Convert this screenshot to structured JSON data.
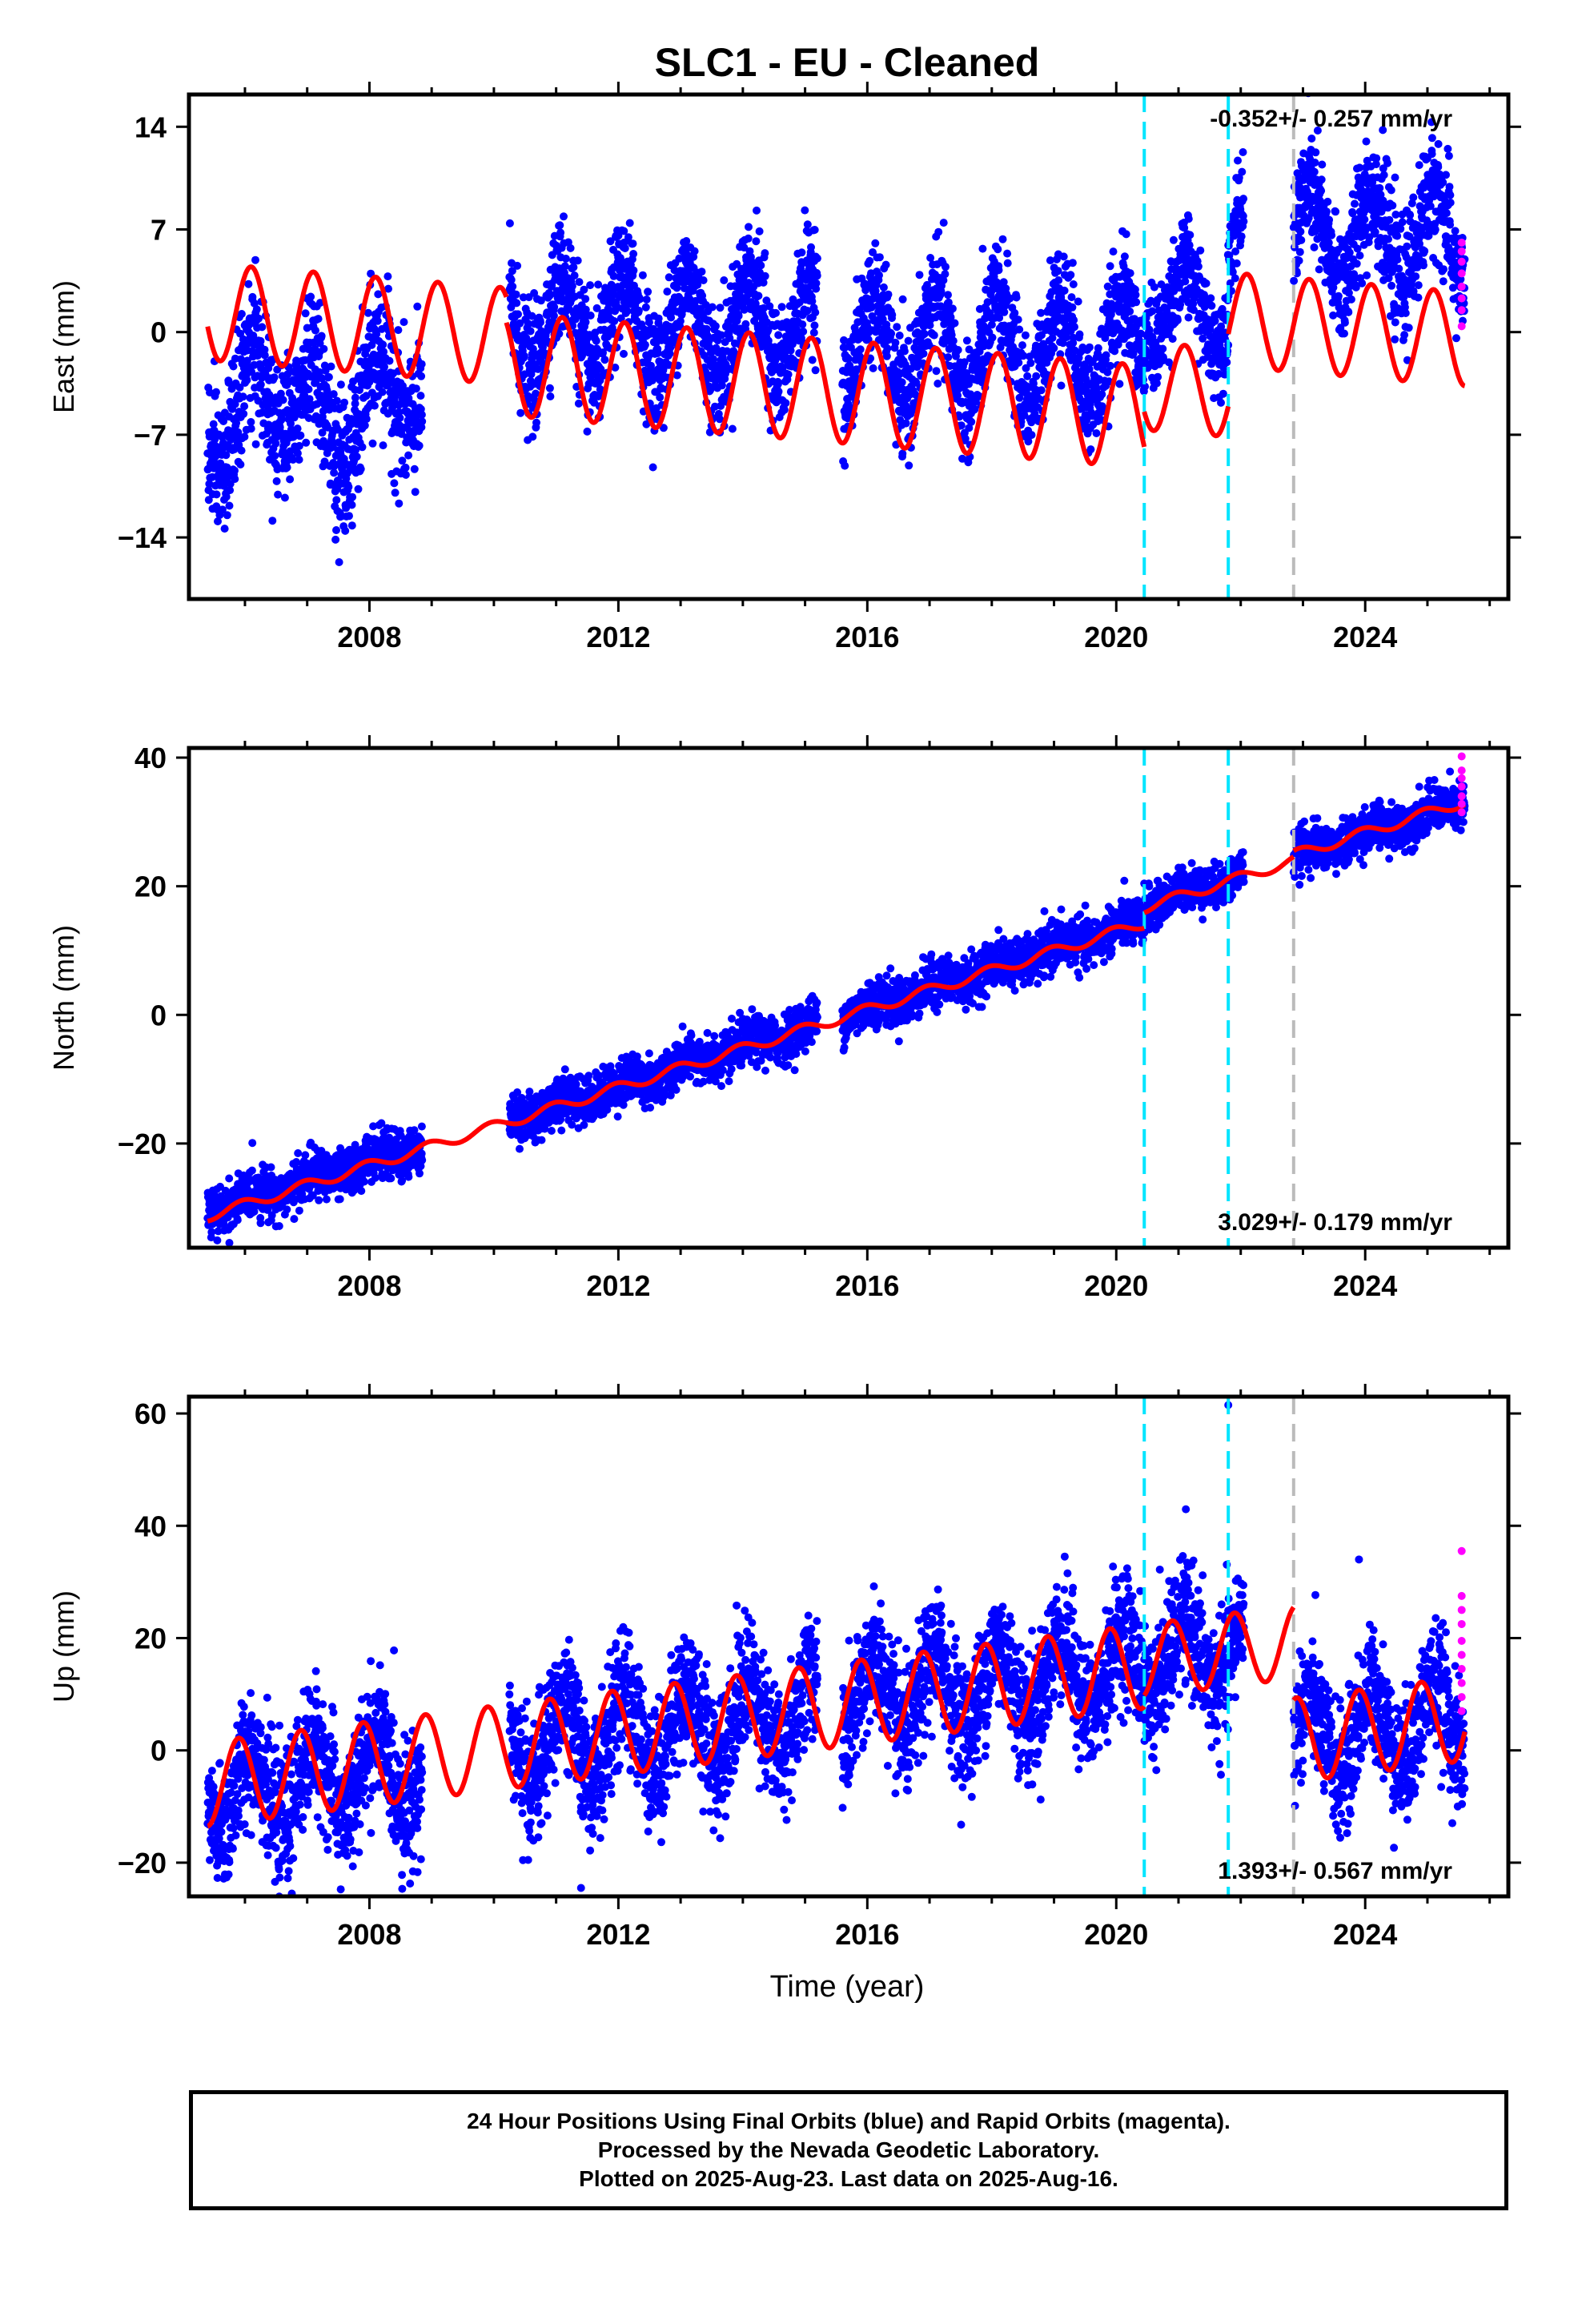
{
  "title": "SLC1  - EU - Cleaned",
  "colors": {
    "final_orbits": "#0000ff",
    "rapid_orbits": "#ff00ff",
    "model_fit": "#ff0000",
    "event_cyan": "#00e5ff",
    "event_gray": "#bbbbbb",
    "frame": "#000000"
  },
  "footer": {
    "line1": "24 Hour Positions Using Final Orbits (blue) and Rapid Orbits (magenta).",
    "line2": "Processed by the Nevada Geodetic Laboratory.",
    "line3": "Plotted on 2025-Aug-23. Last data on 2025-Aug-16."
  },
  "chart_data": [
    {
      "type": "scatter",
      "component": "east",
      "ylabel": "East (mm)",
      "xlabel": "",
      "xlim": [
        2005.1,
        2026.3
      ],
      "ylim": [
        -18.2,
        16.2
      ],
      "x_ticks": [
        2008,
        2012,
        2016,
        2020,
        2024
      ],
      "x_tick_labels": [
        "2008",
        "2012",
        "2016",
        "2020",
        "2024"
      ],
      "y_ticks": [
        14,
        7,
        0,
        -7,
        -14
      ],
      "y_tick_labels": [
        "14",
        "7",
        "0",
        "-7",
        "-14"
      ],
      "rate_label": "-0.352+/- 0.257 mm/yr",
      "rate_position": "top-right",
      "events_cyan": [
        2020.45,
        2021.8
      ],
      "events_gray": [
        2022.85
      ],
      "gaps": [
        [
          2008.85,
          2010.25
        ],
        [
          2015.2,
          2015.6
        ],
        [
          2022.05,
          2022.85
        ]
      ],
      "model": {
        "segments": [
          {
            "t0": 2005.4,
            "t1": 2010.2,
            "offset": 1.4,
            "rate": -0.35,
            "amp": 3.3,
            "phase": 0.15
          },
          {
            "t0": 2010.2,
            "t1": 2020.45,
            "offset": -0.5,
            "rate": -0.35,
            "amp": 3.5,
            "phase": 0.15
          },
          {
            "t0": 2020.45,
            "t1": 2021.8,
            "offset": 1.6,
            "rate": -0.35,
            "amp": 3.0,
            "phase": 0.15
          },
          {
            "t0": 2021.8,
            "t1": 2025.6,
            "offset": 6.6,
            "rate": -0.35,
            "amp": 3.2,
            "phase": 0.15
          }
        ]
      },
      "scatter_levels": [
        {
          "t0": 2005.4,
          "t1": 2008.85,
          "center": -5.0,
          "amp": 3.0,
          "noise": 2.4
        },
        {
          "t0": 2010.25,
          "t1": 2015.2,
          "center": 0.5,
          "amp": 3.2,
          "noise": 2.0
        },
        {
          "t0": 2015.6,
          "t1": 2020.45,
          "center": -1.2,
          "amp": 3.4,
          "noise": 1.9
        },
        {
          "t0": 2020.45,
          "t1": 2021.8,
          "center": 1.8,
          "amp": 2.6,
          "noise": 1.6
        },
        {
          "t0": 2021.8,
          "t1": 2022.05,
          "center": 6.0,
          "amp": 2.5,
          "noise": 1.6
        },
        {
          "t0": 2022.85,
          "t1": 2025.6,
          "center": 6.5,
          "amp": 3.2,
          "noise": 2.0
        }
      ],
      "rapid": {
        "t": 2025.55,
        "values": [
          0.4,
          1.5,
          2.3,
          3.1,
          4.0,
          4.8,
          5.5,
          6.1
        ]
      }
    },
    {
      "type": "scatter",
      "component": "north",
      "ylabel": "North (mm)",
      "xlabel": "",
      "xlim": [
        2005.1,
        2026.3
      ],
      "ylim": [
        -36.2,
        41.5
      ],
      "x_ticks": [
        2008,
        2012,
        2016,
        2020,
        2024
      ],
      "x_tick_labels": [
        "2008",
        "2012",
        "2016",
        "2020",
        "2024"
      ],
      "y_ticks": [
        40,
        20,
        0,
        -20
      ],
      "y_tick_labels": [
        "40",
        "20",
        "0",
        "-20"
      ],
      "rate_label": "3.029+/- 0.179 mm/yr",
      "rate_position": "bottom-right",
      "events_cyan": [
        2020.45,
        2021.8
      ],
      "events_gray": [
        2022.85
      ],
      "gaps": [
        [
          2008.85,
          2010.25
        ],
        [
          2015.2,
          2015.6
        ],
        [
          2022.05,
          2022.85
        ]
      ],
      "model": {
        "segments": [
          {
            "t0": 2005.4,
            "t1": 2020.45,
            "offset": -31.3,
            "rate": 3.029,
            "amp": 0.8,
            "phase": 0.3
          },
          {
            "t0": 2020.45,
            "t1": 2022.85,
            "offset": -28.9,
            "rate": 3.029,
            "amp": 0.8,
            "phase": 0.3
          },
          {
            "t0": 2022.85,
            "t1": 2025.6,
            "offset": -28.0,
            "rate": 3.029,
            "amp": 0.8,
            "phase": 0.3
          }
        ]
      },
      "scatter_levels": [
        {
          "t0": 2005.4,
          "t1": 2008.85,
          "center": -30.6,
          "rate": 3.029,
          "amp": 0.8,
          "noise": 1.8
        },
        {
          "t0": 2010.25,
          "t1": 2015.2,
          "center": -31.1,
          "rate": 3.029,
          "amp": 0.8,
          "noise": 1.8
        },
        {
          "t0": 2015.6,
          "t1": 2020.45,
          "center": -31.0,
          "rate": 3.029,
          "amp": 0.8,
          "noise": 1.8
        },
        {
          "t0": 2020.45,
          "t1": 2022.05,
          "center": -28.5,
          "rate": 3.029,
          "amp": 0.8,
          "noise": 1.6
        },
        {
          "t0": 2022.85,
          "t1": 2025.6,
          "center": -28.2,
          "rate": 3.029,
          "amp": 0.8,
          "noise": 1.7
        }
      ],
      "rapid": {
        "t": 2025.55,
        "values": [
          31.5,
          32.8,
          34.0,
          35.5,
          36.8,
          38.0,
          40.2
        ]
      }
    },
    {
      "type": "scatter",
      "component": "up",
      "ylabel": "Up (mm)",
      "xlabel": "Time (year)",
      "xlim": [
        2005.1,
        2026.3
      ],
      "ylim": [
        -26.0,
        63.0
      ],
      "x_ticks": [
        2008,
        2012,
        2016,
        2020,
        2024
      ],
      "x_tick_labels": [
        "2008",
        "2012",
        "2016",
        "2020",
        "2024"
      ],
      "y_ticks": [
        60,
        40,
        20,
        0,
        -20
      ],
      "y_tick_labels": [
        "60",
        "40",
        "20",
        "0",
        "-20"
      ],
      "rate_label": "1.393+/- 0.567 mm/yr",
      "rate_position": "bottom-right",
      "events_cyan": [
        2020.45,
        2021.8
      ],
      "events_gray": [
        2022.85
      ],
      "gaps": [
        [
          2008.85,
          2010.25
        ],
        [
          2015.2,
          2015.6
        ],
        [
          2022.05,
          2022.85
        ]
      ],
      "outliers": [
        [
          2021.8,
          61.5
        ],
        [
          2013.9,
          25.8
        ],
        [
          2011.4,
          -24.5
        ],
        [
          2020.7,
          32.2
        ],
        [
          2023.9,
          34.0
        ]
      ],
      "model": {
        "segments": [
          {
            "t0": 2005.4,
            "t1": 2020.45,
            "offset": -6.0,
            "rate": 1.393,
            "amp": 7.5,
            "phase": 0.35
          },
          {
            "t0": 2020.45,
            "t1": 2022.85,
            "offset": -5.0,
            "rate": 1.393,
            "amp": 6.5,
            "phase": 0.35
          },
          {
            "t0": 2022.85,
            "t1": 2025.6,
            "offset": -22.5,
            "rate": 1.393,
            "amp": 7.5,
            "phase": 0.35
          }
        ]
      },
      "scatter_levels": [
        {
          "t0": 2005.4,
          "t1": 2008.85,
          "center": -8.0,
          "rate": 1.393,
          "amp": 7.0,
          "noise": 5.5
        },
        {
          "t0": 2010.25,
          "t1": 2015.2,
          "center": -6.5,
          "rate": 1.393,
          "amp": 7.0,
          "noise": 5.5
        },
        {
          "t0": 2015.6,
          "t1": 2020.45,
          "center": -6.0,
          "rate": 1.393,
          "amp": 7.0,
          "noise": 5.5
        },
        {
          "t0": 2020.45,
          "t1": 2022.05,
          "center": -5.0,
          "rate": 1.393,
          "amp": 6.5,
          "noise": 5.5
        },
        {
          "t0": 2022.85,
          "t1": 2025.6,
          "center": -22.5,
          "rate": 1.393,
          "amp": 7.0,
          "noise": 5.5
        }
      ],
      "rapid": {
        "t": 2025.55,
        "values": [
          7.0,
          9.5,
          12.0,
          14.5,
          17.0,
          19.5,
          22.5,
          25.0,
          27.5,
          35.5
        ]
      }
    }
  ]
}
